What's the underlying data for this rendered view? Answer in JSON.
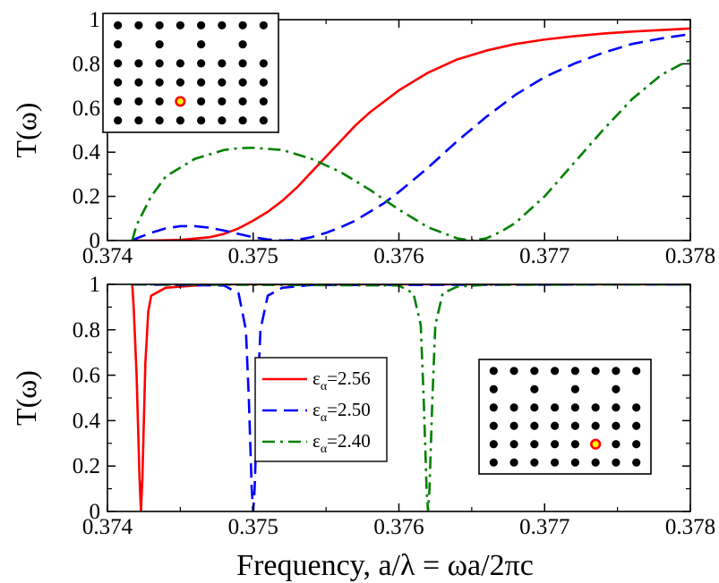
{
  "chart_data": [
    {
      "type": "line",
      "panel": "top",
      "ylabel": "T(ω)",
      "xlim": [
        0.374,
        0.378
      ],
      "ylim": [
        0,
        1
      ],
      "xticks": [
        "0.374",
        "0.375",
        "0.376",
        "0.377",
        "0.378"
      ],
      "yticks": [
        "0",
        "0.2",
        "0.4",
        "0.6",
        "0.8",
        "1"
      ],
      "grid": false,
      "inset": "photonic crystal lattice, 6 rows x 8 columns of rods, rods missing in the second row (waveguide), highlighted defect rod at row 5 column 4",
      "series": [
        {
          "name": "εα=2.56",
          "color": "#ff0000",
          "dash": "solid",
          "x": [
            0.37417,
            0.3743,
            0.3745,
            0.3747,
            0.3748,
            0.3749,
            0.375,
            0.3751,
            0.3752,
            0.3753,
            0.3754,
            0.3755,
            0.3756,
            0.3757,
            0.3758,
            0.376,
            0.3762,
            0.3764,
            0.3766,
            0.3768,
            0.377,
            0.3772,
            0.3774,
            0.3776,
            0.3778,
            0.378
          ],
          "y": [
            0,
            0,
            0.003,
            0.015,
            0.03,
            0.055,
            0.09,
            0.13,
            0.18,
            0.24,
            0.31,
            0.38,
            0.45,
            0.52,
            0.58,
            0.68,
            0.76,
            0.82,
            0.86,
            0.89,
            0.91,
            0.925,
            0.937,
            0.946,
            0.953,
            0.96
          ]
        },
        {
          "name": "εα=2.50",
          "color": "#0000ff",
          "dash": "dashed",
          "x": [
            0.37417,
            0.3742,
            0.3743,
            0.3744,
            0.3745,
            0.3746,
            0.3747,
            0.3748,
            0.3749,
            0.375,
            0.3751,
            0.3752,
            0.3753,
            0.3754,
            0.3755,
            0.3756,
            0.3757,
            0.3758,
            0.3759,
            0.376,
            0.3762,
            0.3764,
            0.3766,
            0.3768,
            0.377,
            0.3772,
            0.3774,
            0.3776,
            0.3778,
            0.378
          ],
          "y": [
            0,
            0.01,
            0.035,
            0.055,
            0.065,
            0.065,
            0.058,
            0.045,
            0.03,
            0.015,
            0.005,
            0,
            0.003,
            0.015,
            0.035,
            0.06,
            0.09,
            0.13,
            0.17,
            0.22,
            0.33,
            0.45,
            0.56,
            0.66,
            0.74,
            0.8,
            0.85,
            0.89,
            0.915,
            0.935
          ]
        },
        {
          "name": "εα=2.40",
          "color": "#008000",
          "dash": "dashdot",
          "x": [
            0.37417,
            0.3742,
            0.3743,
            0.3744,
            0.3746,
            0.3748,
            0.3749,
            0.375,
            0.3752,
            0.3754,
            0.3756,
            0.3758,
            0.376,
            0.3762,
            0.3764,
            0.3765,
            0.3766,
            0.3767,
            0.3768,
            0.377,
            0.3772,
            0.3774,
            0.3776,
            0.3778,
            0.378
          ],
          "y": [
            0,
            0.07,
            0.2,
            0.29,
            0.37,
            0.41,
            0.418,
            0.42,
            0.41,
            0.37,
            0.31,
            0.23,
            0.14,
            0.06,
            0.01,
            0,
            0.01,
            0.04,
            0.08,
            0.2,
            0.35,
            0.5,
            0.64,
            0.75,
            0.82
          ]
        }
      ]
    },
    {
      "type": "line",
      "panel": "bottom",
      "ylabel": "T(ω)",
      "xlabel": "Frequency,  a/λ = ωa/2πc",
      "xlim": [
        0.374,
        0.378
      ],
      "ylim": [
        0,
        1
      ],
      "xticks": [
        "0.374",
        "0.375",
        "0.376",
        "0.377",
        "0.378"
      ],
      "yticks": [
        "0",
        "0.2",
        "0.4",
        "0.6",
        "0.8",
        "1"
      ],
      "grid": false,
      "legend": "center",
      "inset": "photonic crystal lattice, 6 rows x 8 columns of rods, rods missing in the second row (waveguide), highlighted defect rod at row 5 column 6",
      "series": [
        {
          "name": "εα=2.56",
          "color": "#ff0000",
          "dash": "solid",
          "x": [
            0.37417,
            0.37418,
            0.3742,
            0.37422,
            0.37423,
            0.37424,
            0.37426,
            0.37428,
            0.3743,
            0.3744,
            0.3746,
            0.3748,
            0.378
          ],
          "y": [
            1,
            0.9,
            0.6,
            0.15,
            0,
            0.15,
            0.65,
            0.88,
            0.95,
            0.985,
            0.995,
            1,
            1
          ]
        },
        {
          "name": "εα=2.50",
          "color": "#0000ff",
          "dash": "dashed",
          "x": [
            0.37417,
            0.3748,
            0.3749,
            0.37495,
            0.37497,
            0.37499,
            0.375,
            0.37501,
            0.37503,
            0.37505,
            0.3751,
            0.3752,
            0.3754,
            0.378
          ],
          "y": [
            1,
            0.995,
            0.96,
            0.8,
            0.5,
            0.1,
            0,
            0.1,
            0.5,
            0.8,
            0.95,
            0.985,
            0.997,
            1
          ]
        },
        {
          "name": "εα=2.40",
          "color": "#008000",
          "dash": "dashdot",
          "x": [
            0.37417,
            0.376,
            0.3761,
            0.37615,
            0.37617,
            0.37619,
            0.3762,
            0.37621,
            0.37623,
            0.37625,
            0.3763,
            0.3764,
            0.3766,
            0.378
          ],
          "y": [
            1,
            0.995,
            0.96,
            0.82,
            0.5,
            0.1,
            0,
            0.1,
            0.5,
            0.82,
            0.96,
            0.99,
            0.998,
            1
          ]
        }
      ]
    }
  ],
  "legend": {
    "entries": [
      {
        "main": "ε",
        "sub": "α",
        "value": "=2.56",
        "color": "#ff0000",
        "dash": "solid"
      },
      {
        "main": "ε",
        "sub": "α",
        "value": "=2.50",
        "color": "#0000ff",
        "dash": "dashed"
      },
      {
        "main": "ε",
        "sub": "α",
        "value": "=2.40",
        "color": "#008000",
        "dash": "dashdot"
      }
    ]
  },
  "insets": [
    {
      "rows": 6,
      "cols": 8,
      "missing_row": 2,
      "defect_row": 5,
      "defect_col": 4,
      "rod_color": "#000000",
      "defect_fill": "#ff0000",
      "defect_ring": "#ffff00"
    },
    {
      "rows": 6,
      "cols": 8,
      "missing_row": 2,
      "defect_row": 5,
      "defect_col": 6,
      "rod_color": "#000000",
      "defect_fill": "#ff0000",
      "defect_ring": "#ffff00"
    }
  ]
}
